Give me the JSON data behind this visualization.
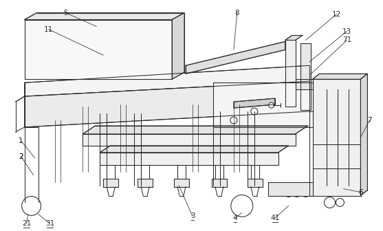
{
  "fig_width": 5.57,
  "fig_height": 3.36,
  "dpi": 100,
  "bg_color": "#ffffff",
  "lc": "#2a2a2a",
  "lw": 0.75,
  "lw_thin": 0.5,
  "label_fs": 7.5
}
